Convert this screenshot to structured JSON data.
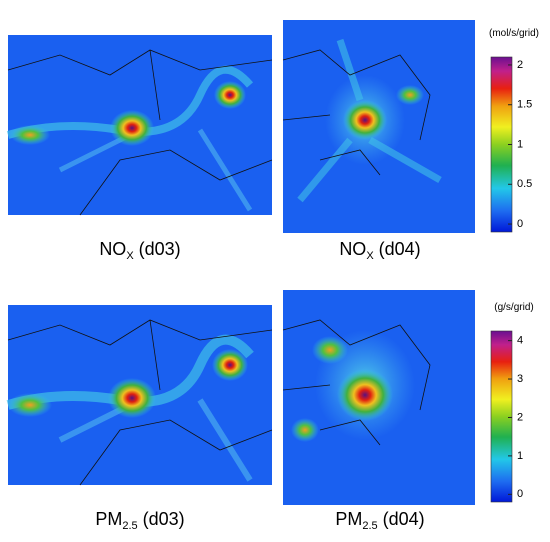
{
  "panels": [
    {
      "main": "NO",
      "sub": "X",
      "suffix": " (d03)"
    },
    {
      "main": "NO",
      "sub": "X",
      "suffix": " (d04)"
    },
    {
      "main": "PM",
      "sub": "2.5",
      "suffix": " (d03)"
    },
    {
      "main": "PM",
      "sub": "2.5",
      "suffix": " (d04)"
    }
  ],
  "colorbars": [
    {
      "unit": "(mol/s/grid)",
      "lim": [
        -0.1,
        2.1
      ],
      "ticks": [
        0,
        0.5,
        1,
        1.5,
        2
      ]
    },
    {
      "unit": "(g/s/grid)",
      "lim": [
        -0.2,
        4.25
      ],
      "ticks": [
        0,
        1,
        2,
        3,
        4
      ]
    }
  ]
}
